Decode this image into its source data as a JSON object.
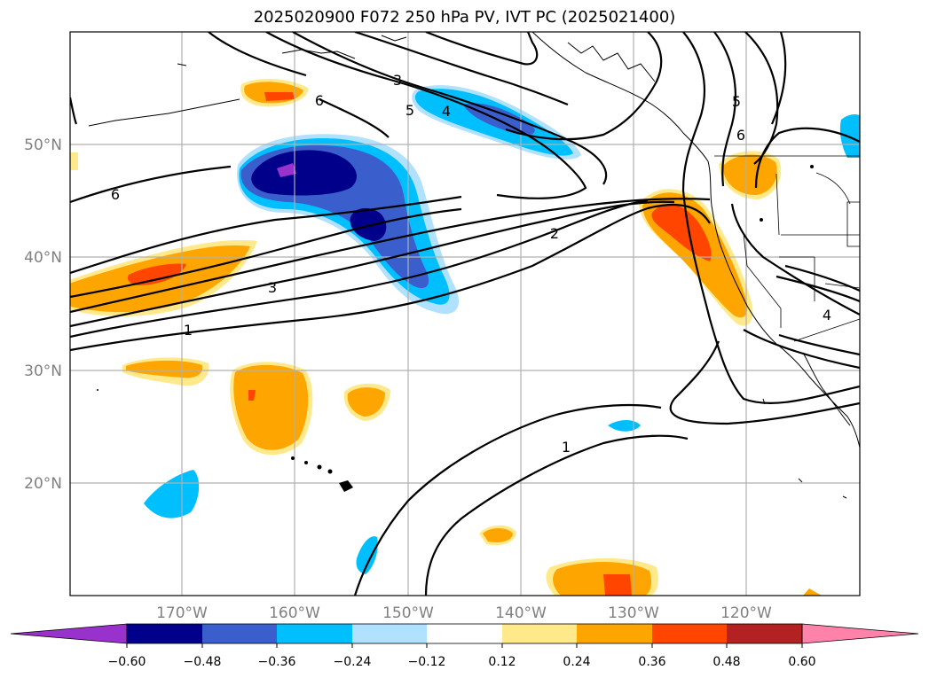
{
  "title": "2025020900 F072 250 hPa PV, IVT PC (2025021400)",
  "map": {
    "lat_labels": [
      "50°N",
      "40°N",
      "30°N",
      "20°N"
    ],
    "lon_labels": [
      "170°W",
      "160°W",
      "150°W",
      "140°W",
      "130°W",
      "120°W"
    ],
    "gridlines": true,
    "contour_labels": [
      "1",
      "1",
      "2",
      "3",
      "3",
      "4",
      "4",
      "5",
      "5",
      "6",
      "6",
      "6"
    ]
  },
  "colorbar": {
    "ticks": [
      "−0.60",
      "−0.48",
      "−0.36",
      "−0.24",
      "−0.12",
      "0.12",
      "0.24",
      "0.36",
      "0.48",
      "0.60"
    ],
    "colors": [
      "#9932CC",
      "#00008B",
      "#3A5FCD",
      "#00BFFF",
      "#B0E2FF",
      "#FFFFFF",
      "#FFE98A",
      "#FFA500",
      "#FF4500",
      "#B22222",
      "#FF82AB"
    ],
    "extend": "both"
  }
}
